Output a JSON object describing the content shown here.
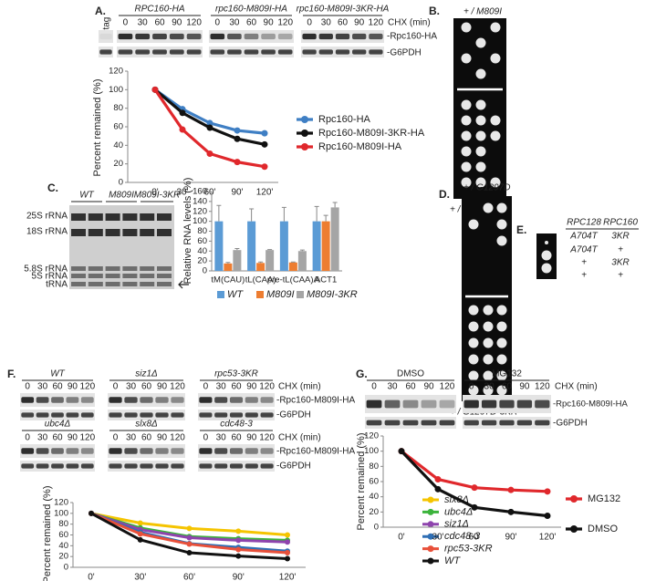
{
  "figure": {
    "a": {
      "label": "A.",
      "untag": "Untag",
      "strains": [
        "RPC160-HA",
        "rpc160-M809I-HA",
        "rpc160-M809I-3KR-HA"
      ],
      "lanes": [
        "0",
        "30",
        "60",
        "90",
        "120"
      ],
      "chx": "CHX (min)",
      "bands": [
        "-Rpc160-HA",
        "-G6PDH"
      ]
    },
    "b": {
      "label": "B.",
      "top": "+ / M809I",
      "bottom": "+ / M809I-3KR"
    },
    "c": {
      "label": "C.",
      "strains": [
        "WT",
        "M809I",
        "M809I-3KR"
      ],
      "rrna": [
        "25S rRNA",
        "18S rRNA",
        "5.8S rRNA",
        "5S rRNA",
        "tRNA"
      ]
    },
    "d": {
      "label": "D.",
      "top": "+ / G1297D",
      "bottom": "+ / G1297D-3KR"
    },
    "e": {
      "label": "E.",
      "headers": [
        "RPC128",
        "RPC160"
      ],
      "rows": [
        [
          "A704T",
          "3KR"
        ],
        [
          "A704T",
          "+"
        ],
        [
          "+",
          "3KR"
        ],
        [
          "+",
          "+"
        ]
      ]
    },
    "f": {
      "label": "F.",
      "strains": [
        "WT",
        "siz1Δ",
        "rpc53-3KR",
        "ubc4Δ",
        "slx8Δ",
        "cdc48-3"
      ],
      "lanes": [
        "0",
        "30",
        "60",
        "90",
        "120"
      ],
      "chx": "CHX (min)",
      "bands": [
        "-Rpc160-M809I-HA",
        "-G6PDH"
      ]
    },
    "g": {
      "label": "G.",
      "treatments": [
        "DMSO",
        "MG132"
      ],
      "lanes": [
        "0",
        "30",
        "60",
        "90",
        "120"
      ],
      "chx": "CHX (min)",
      "bands": [
        "-Rpc160-M809I-HA",
        "-G6PDH"
      ]
    }
  },
  "chart_data": [
    {
      "type": "line",
      "y_label": "Percent remained (%)",
      "categories": [
        "0'",
        "30'",
        "60'",
        "90'",
        "120'"
      ],
      "series": [
        {
          "name": "Rpc160-HA",
          "color": "#3f7fc4",
          "values": [
            100,
            79,
            64,
            56,
            53
          ]
        },
        {
          "name": "Rpc160-M809I-3KR-HA",
          "color": "#111111",
          "values": [
            100,
            75,
            59,
            47,
            41
          ]
        },
        {
          "name": "Rpc160-M809I-HA",
          "color": "#e0282c",
          "values": [
            100,
            57,
            31,
            22,
            17
          ]
        }
      ],
      "ylim": [
        0,
        120
      ],
      "yticks": [
        0,
        20,
        40,
        60,
        80,
        100,
        120
      ],
      "grid": false,
      "legend": "right"
    },
    {
      "type": "bar",
      "y_label": "Relative RNA levels (%)",
      "categories": [
        "tM(CAU)",
        "tL(CAA)",
        "pre-tL(CAA)A",
        "ACT1"
      ],
      "series": [
        {
          "name": "WT",
          "color": "#5b9bd5",
          "values": [
            100,
            100,
            100,
            100
          ],
          "errors": [
            32,
            25,
            28,
            30
          ]
        },
        {
          "name": "M809I",
          "color": "#ed7d31",
          "values": [
            15,
            16,
            17,
            100
          ],
          "errors": [
            2,
            2,
            1,
            12
          ]
        },
        {
          "name": "M809I-3KR",
          "color": "#a5a5a5",
          "values": [
            42,
            42,
            40,
            128
          ],
          "errors": [
            3,
            1,
            2,
            10
          ]
        }
      ],
      "ylim": [
        0,
        160
      ],
      "yticks": [
        0,
        20,
        40,
        60,
        80,
        100,
        120,
        140,
        160
      ],
      "grid": false,
      "legend": "bottom"
    },
    {
      "type": "line",
      "y_label": "Percent remained (%)",
      "categories": [
        "0'",
        "30'",
        "60'",
        "90'",
        "120'"
      ],
      "series": [
        {
          "name": "slx8Δ",
          "color": "#f5c400",
          "values": [
            100,
            82,
            72,
            67,
            60
          ]
        },
        {
          "name": "ubc4Δ",
          "color": "#3cb43c",
          "values": [
            100,
            73,
            57,
            53,
            50
          ]
        },
        {
          "name": "siz1Δ",
          "color": "#8e44ad",
          "values": [
            100,
            70,
            55,
            50,
            47
          ]
        },
        {
          "name": "cdc48-3",
          "color": "#2f6fb5",
          "values": [
            100,
            65,
            44,
            37,
            30
          ]
        },
        {
          "name": "rpc53-3KR",
          "color": "#e8503a",
          "values": [
            100,
            62,
            43,
            33,
            27
          ]
        },
        {
          "name": "WT",
          "color": "#111111",
          "values": [
            100,
            51,
            27,
            21,
            16
          ]
        }
      ],
      "ylim": [
        0,
        120
      ],
      "yticks": [
        0,
        20,
        40,
        60,
        80,
        100,
        120
      ],
      "grid": false,
      "legend": "right"
    },
    {
      "type": "line",
      "y_label": "Percent remained (%)",
      "categories": [
        "0'",
        "30'",
        "60'",
        "90'",
        "120'"
      ],
      "series": [
        {
          "name": "MG132",
          "color": "#e0282c",
          "values": [
            100,
            63,
            52,
            49,
            47
          ]
        },
        {
          "name": "DMSO",
          "color": "#111111",
          "values": [
            100,
            50,
            26,
            20,
            15
          ]
        }
      ],
      "ylim": [
        0,
        120
      ],
      "yticks": [
        0,
        20,
        40,
        60,
        80,
        100,
        120
      ],
      "grid": false,
      "legend": "right"
    }
  ]
}
